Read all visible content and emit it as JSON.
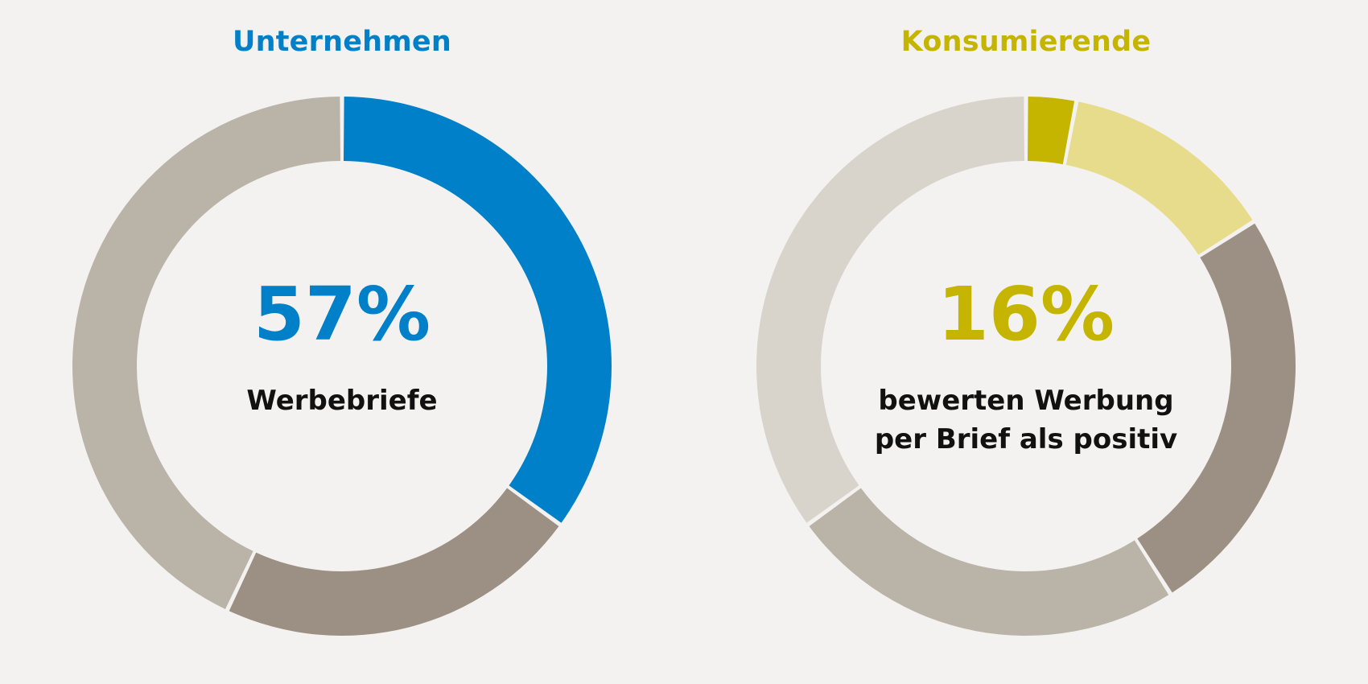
{
  "chart_data": [
    {
      "type": "pie",
      "title": "Unternehmen",
      "title_color": "#0080c8",
      "center_value": "57%",
      "center_value_color": "#0080c8",
      "center_label_lines": [
        "Werbebriefe"
      ],
      "slices": [
        {
          "value": 35,
          "color": "#0080c8"
        },
        {
          "value": 22,
          "color": "#9c9084"
        },
        {
          "value": 43,
          "color": "#bab3a8"
        }
      ]
    },
    {
      "type": "pie",
      "title": "Konsumierende",
      "title_color": "#c5b500",
      "center_value": "16%",
      "center_value_color": "#c5b500",
      "center_label_lines": [
        "bewerten Werbung",
        "per Brief als positiv"
      ],
      "slices": [
        {
          "value": 3,
          "color": "#c5b500"
        },
        {
          "value": 13,
          "color": "#e6dc8c"
        },
        {
          "value": 25,
          "color": "#9c9084"
        },
        {
          "value": 24,
          "color": "#bab3a8"
        },
        {
          "value": 35,
          "color": "#d8d4cc"
        }
      ]
    }
  ]
}
